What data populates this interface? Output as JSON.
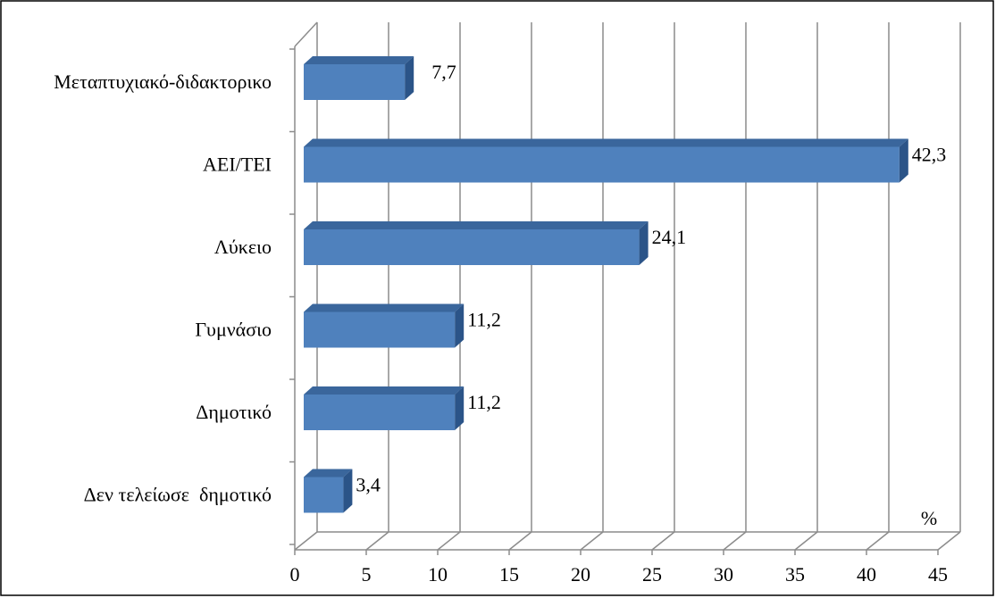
{
  "chart_data": {
    "type": "bar",
    "orientation": "horizontal",
    "three_d": true,
    "categories": [
      "Μεταπτυχιακό-διδακτορικο",
      "ΑΕΙ/ΤΕΙ",
      "Λύκειο",
      "Γυμνάσιο",
      "Δημοτικό",
      "Δεν τελείωσε  δημοτικό"
    ],
    "values": [
      7.7,
      42.3,
      24.1,
      11.2,
      11.2,
      3.4
    ],
    "data_labels": [
      "7,7",
      "42,3",
      "24,1",
      "11,2",
      "11,2",
      "3,4"
    ],
    "x_ticks": [
      "0",
      "5",
      "10",
      "15",
      "20",
      "25",
      "30",
      "35",
      "40",
      "45"
    ],
    "xlim": [
      0,
      45
    ],
    "unit_label": "%",
    "grid": true,
    "legend": "none",
    "colors": {
      "bar_front": "#4F81BD",
      "bar_top": "#3A669C",
      "bar_side": "#2B5488",
      "grid": "#8C8C8C",
      "frame": "#000000"
    }
  }
}
